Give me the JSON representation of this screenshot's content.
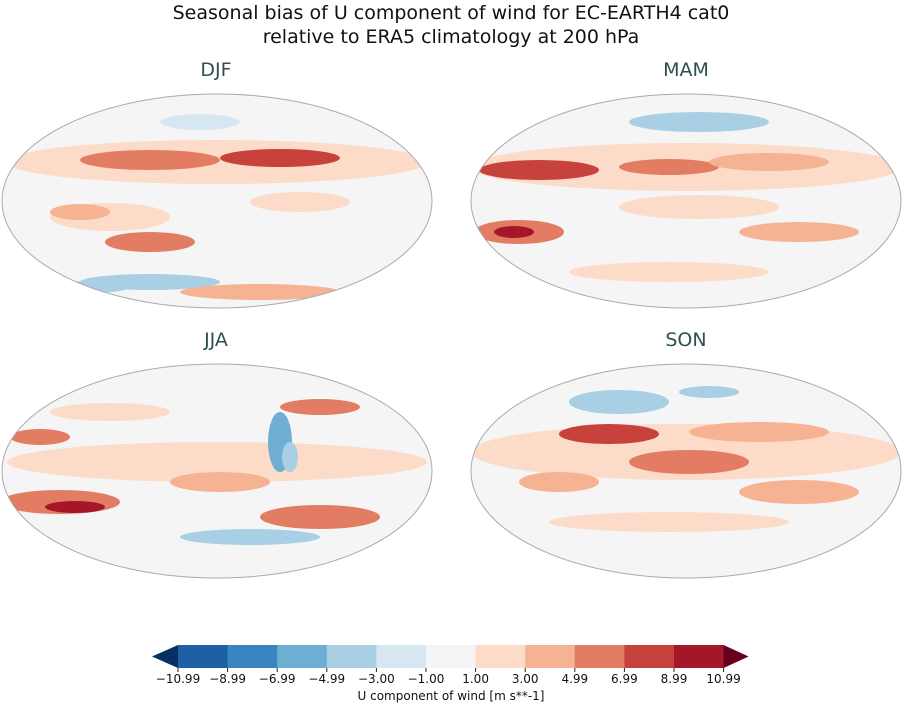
{
  "title": {
    "line1": "Seasonal bias of U component of wind for EC-EARTH4 cat0",
    "line2": "relative to ERA5 climatology at 200 hPa"
  },
  "panels": [
    {
      "label": "DJF"
    },
    {
      "label": "MAM"
    },
    {
      "label": "JJA"
    },
    {
      "label": "SON"
    }
  ],
  "colorbar": {
    "label": "U component of wind [m s**-1]",
    "ticks": [
      "−10.99",
      "−8.99",
      "−6.99",
      "−4.99",
      "−3.00",
      "−1.00",
      "1.00",
      "3.00",
      "4.99",
      "6.99",
      "8.99",
      "10.99"
    ],
    "colors": [
      "#053061",
      "#1f5fa6",
      "#3985c0",
      "#6eaed3",
      "#a9cfe5",
      "#d6e7f1",
      "#f5f5f5",
      "#fcdbc8",
      "#f5b394",
      "#e27c63",
      "#c8423d",
      "#a51728",
      "#67001f"
    ],
    "extend": "both"
  }
}
